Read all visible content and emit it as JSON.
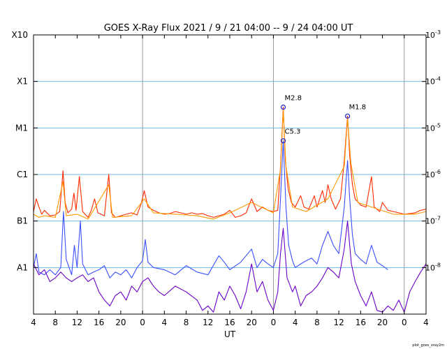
{
  "chart_data": {
    "type": "line",
    "title": "GOES X-Ray Flux   2021 /  9 / 21   04:00 --  9 / 24   04:00   UT",
    "xlabel": "UT",
    "footer": "plot_goes_xray2m",
    "x_range_hours": [
      0,
      72
    ],
    "x_tick_labels": [
      "4",
      "8",
      "12",
      "16",
      "20",
      "0",
      "4",
      "8",
      "12",
      "16",
      "20",
      "0",
      "4",
      "8",
      "12",
      "16",
      "20",
      "0",
      "4"
    ],
    "day_boundaries_hours": [
      20,
      44,
      68
    ],
    "y_scale": "log",
    "ylim": [
      1e-09,
      0.001
    ],
    "y_left_labels": [
      {
        "label": "X10",
        "value": 0.001
      },
      {
        "label": "X1",
        "value": 0.0001
      },
      {
        "label": "M1",
        "value": 1e-05
      },
      {
        "label": "C1",
        "value": 1e-06
      },
      {
        "label": "B1",
        "value": 1e-07
      },
      {
        "label": "A1",
        "value": 1e-08
      }
    ],
    "y_right_labels": [
      {
        "base": "10",
        "exp": "-3",
        "value": 0.001
      },
      {
        "base": "10",
        "exp": "-4",
        "value": 0.0001
      },
      {
        "base": "10",
        "exp": "-5",
        "value": 1e-05
      },
      {
        "base": "10",
        "exp": "-6",
        "value": 1e-06
      },
      {
        "base": "10",
        "exp": "-7",
        "value": 1e-07
      },
      {
        "base": "10",
        "exp": "-8",
        "value": 1e-08
      }
    ],
    "flares": [
      {
        "label": "M2.8",
        "hour": 45.8,
        "value": 2.8e-05
      },
      {
        "label": "C5.3",
        "hour": 45.8,
        "value": 5.3e-06
      },
      {
        "label": "M1.8",
        "hour": 57.6,
        "value": 1.8e-05
      }
    ],
    "series": [
      {
        "color": "#ff2a00",
        "points": [
          [
            0,
            1.6e-07
          ],
          [
            0.5,
            3e-07
          ],
          [
            1,
            2e-07
          ],
          [
            1.5,
            1.4e-07
          ],
          [
            2,
            1.7e-07
          ],
          [
            3,
            1.3e-07
          ],
          [
            4,
            1.35e-07
          ],
          [
            4.8,
            1.6e-07
          ],
          [
            5.4,
            1.2e-06
          ],
          [
            5.8,
            2.5e-07
          ],
          [
            6.3,
            1.5e-07
          ],
          [
            7,
            1.8e-07
          ],
          [
            7.4,
            4e-07
          ],
          [
            7.8,
            1.7e-07
          ],
          [
            8.4,
            9e-07
          ],
          [
            9,
            1.6e-07
          ],
          [
            10,
            1.2e-07
          ],
          [
            10.6,
            1.7e-07
          ],
          [
            11.2,
            3e-07
          ],
          [
            11.8,
            1.5e-07
          ],
          [
            13,
            1.3e-07
          ],
          [
            13.8,
            1e-06
          ],
          [
            14.3,
            1.5e-07
          ],
          [
            15,
            1.2e-07
          ],
          [
            16,
            1.3e-07
          ],
          [
            17,
            1.4e-07
          ],
          [
            18,
            1.5e-07
          ],
          [
            19,
            1.35e-07
          ],
          [
            19.8,
            2.5e-07
          ],
          [
            20.3,
            4.5e-07
          ],
          [
            21,
            2e-07
          ],
          [
            22,
            1.7e-07
          ],
          [
            23,
            1.5e-07
          ],
          [
            24,
            1.4e-07
          ],
          [
            25,
            1.45e-07
          ],
          [
            26,
            1.6e-07
          ],
          [
            27,
            1.5e-07
          ],
          [
            28,
            1.4e-07
          ],
          [
            29,
            1.5e-07
          ],
          [
            30,
            1.4e-07
          ],
          [
            31,
            1.45e-07
          ],
          [
            32,
            1.3e-07
          ],
          [
            33,
            1.2e-07
          ],
          [
            34,
            1.3e-07
          ],
          [
            35,
            1.4e-07
          ],
          [
            36,
            1.7e-07
          ],
          [
            37,
            1.2e-07
          ],
          [
            38,
            1.3e-07
          ],
          [
            39,
            1.5e-07
          ],
          [
            40,
            3e-07
          ],
          [
            41,
            1.6e-07
          ],
          [
            42,
            2e-07
          ],
          [
            43,
            1.7e-07
          ],
          [
            44,
            1.6e-07
          ],
          [
            44.8,
            1.7e-07
          ],
          [
            45.3,
            1.5e-06
          ],
          [
            45.8,
            2.8e-05
          ],
          [
            46.2,
            2e-06
          ],
          [
            46.7,
            5e-07
          ],
          [
            47.3,
            2.5e-07
          ],
          [
            48,
            2e-07
          ],
          [
            49,
            3.5e-07
          ],
          [
            49.6,
            2e-07
          ],
          [
            50.5,
            1.8e-07
          ],
          [
            51.5,
            3.5e-07
          ],
          [
            52,
            2e-07
          ],
          [
            53,
            4.5e-07
          ],
          [
            53.5,
            2.5e-07
          ],
          [
            54,
            6e-07
          ],
          [
            54.6,
            3e-07
          ],
          [
            55.4,
            1.8e-07
          ],
          [
            56.3,
            3e-07
          ],
          [
            57,
            2e-06
          ],
          [
            57.6,
            1.8e-05
          ],
          [
            58,
            2.5e-06
          ],
          [
            58.5,
            6e-07
          ],
          [
            59,
            3e-07
          ],
          [
            60,
            2.2e-07
          ],
          [
            61,
            2e-07
          ],
          [
            62,
            9e-07
          ],
          [
            62.5,
            2e-07
          ],
          [
            63.5,
            1.6e-07
          ],
          [
            64,
            2.5e-07
          ],
          [
            65,
            1.7e-07
          ],
          [
            66,
            1.6e-07
          ],
          [
            67,
            1.5e-07
          ],
          [
            68,
            1.4e-07
          ],
          [
            69,
            1.45e-07
          ],
          [
            70,
            1.5e-07
          ],
          [
            71,
            1.7e-07
          ],
          [
            72,
            1.8e-07
          ]
        ]
      },
      {
        "color": "#ff9900",
        "points": [
          [
            0,
            1.4e-07
          ],
          [
            1,
            1.2e-07
          ],
          [
            2,
            1.3e-07
          ],
          [
            4,
            1.2e-07
          ],
          [
            5.4,
            7e-07
          ],
          [
            6,
            1.3e-07
          ],
          [
            8,
            1.4e-07
          ],
          [
            10,
            1.1e-07
          ],
          [
            13.8,
            6e-07
          ],
          [
            14.5,
            1.2e-07
          ],
          [
            18,
            1.3e-07
          ],
          [
            20.3,
            3e-07
          ],
          [
            22,
            1.5e-07
          ],
          [
            26,
            1.4e-07
          ],
          [
            30,
            1.3e-07
          ],
          [
            33,
            1.1e-07
          ],
          [
            36,
            1.5e-07
          ],
          [
            40,
            2.5e-07
          ],
          [
            44,
            1.5e-07
          ],
          [
            45.3,
            1.3e-06
          ],
          [
            45.8,
            2.5e-05
          ],
          [
            46.3,
            1.5e-06
          ],
          [
            47.5,
            2e-07
          ],
          [
            50,
            1.6e-07
          ],
          [
            54,
            3e-07
          ],
          [
            57,
            1.5e-06
          ],
          [
            57.6,
            1.6e-05
          ],
          [
            58.2,
            1.8e-06
          ],
          [
            59.5,
            2.5e-07
          ],
          [
            62,
            2e-07
          ],
          [
            66,
            1.4e-07
          ],
          [
            70,
            1.4e-07
          ],
          [
            72,
            1.6e-07
          ]
        ]
      },
      {
        "color": "#3b4fff",
        "points": [
          [
            0,
            1e-08
          ],
          [
            0.5,
            2e-08
          ],
          [
            1,
            8e-09
          ],
          [
            2,
            7e-09
          ],
          [
            3,
            9e-09
          ],
          [
            4,
            7e-09
          ],
          [
            5,
            1e-08
          ],
          [
            5.5,
            1.6e-07
          ],
          [
            6,
            1.5e-08
          ],
          [
            7,
            7e-09
          ],
          [
            7.5,
            3e-08
          ],
          [
            8,
            1e-08
          ],
          [
            8.6,
            1e-07
          ],
          [
            9,
            1.2e-08
          ],
          [
            10,
            7e-09
          ],
          [
            11,
            8e-09
          ],
          [
            12,
            9e-09
          ],
          [
            13,
            1.1e-08
          ],
          [
            14,
            6e-09
          ],
          [
            15,
            8e-09
          ],
          [
            16,
            7e-09
          ],
          [
            17,
            9e-09
          ],
          [
            18,
            6e-09
          ],
          [
            19,
            1e-08
          ],
          [
            20,
            1.4e-08
          ],
          [
            20.5,
            4e-08
          ],
          [
            21,
            1.3e-08
          ],
          [
            22,
            1e-08
          ],
          [
            24,
            9e-09
          ],
          [
            26,
            7e-09
          ],
          [
            28,
            1.1e-08
          ],
          [
            30,
            8e-09
          ],
          [
            32,
            7e-09
          ],
          [
            34,
            1.8e-08
          ],
          [
            35,
            1.3e-08
          ],
          [
            36,
            9e-09
          ],
          [
            38,
            1.3e-08
          ],
          [
            40,
            2.5e-08
          ],
          [
            41,
            1e-08
          ],
          [
            42,
            1.5e-08
          ],
          [
            43,
            1.2e-08
          ],
          [
            44,
            1e-08
          ],
          [
            44.8,
            2e-08
          ],
          [
            45.3,
            3e-07
          ],
          [
            45.8,
            5.3e-06
          ],
          [
            46.3,
            2e-07
          ],
          [
            46.8,
            3e-08
          ],
          [
            47.5,
            1.4e-08
          ],
          [
            48,
            1e-08
          ],
          [
            49,
            1.2e-08
          ],
          [
            50,
            1.4e-08
          ],
          [
            51,
            1.6e-08
          ],
          [
            52,
            1.2e-08
          ],
          [
            53,
            3e-08
          ],
          [
            54,
            6e-08
          ],
          [
            55,
            3e-08
          ],
          [
            56,
            2e-08
          ],
          [
            57,
            2e-07
          ],
          [
            57.6,
            2e-06
          ],
          [
            58,
            3e-07
          ],
          [
            58.5,
            5e-08
          ],
          [
            59,
            2e-08
          ],
          [
            60,
            1.5e-08
          ],
          [
            61,
            1.2e-08
          ],
          [
            62,
            3e-08
          ],
          [
            63,
            1.3e-08
          ],
          [
            64,
            1.1e-08
          ],
          [
            65,
            9e-09
          ]
        ]
      },
      {
        "color": "#6a00c8",
        "points": [
          [
            0,
            1.2e-08
          ],
          [
            1,
            7e-09
          ],
          [
            2,
            9e-09
          ],
          [
            3,
            5e-09
          ],
          [
            4,
            6e-09
          ],
          [
            5,
            8e-09
          ],
          [
            6,
            6e-09
          ],
          [
            7,
            5e-09
          ],
          [
            8,
            6e-09
          ],
          [
            9,
            7e-09
          ],
          [
            10,
            5e-09
          ],
          [
            11,
            6e-09
          ],
          [
            12,
            3e-09
          ],
          [
            13,
            2e-09
          ],
          [
            14,
            1.5e-09
          ],
          [
            15,
            2.5e-09
          ],
          [
            16,
            3e-09
          ],
          [
            17,
            2e-09
          ],
          [
            18,
            4e-09
          ],
          [
            19,
            3e-09
          ],
          [
            20,
            5e-09
          ],
          [
            21,
            6e-09
          ],
          [
            22,
            4e-09
          ],
          [
            23,
            3e-09
          ],
          [
            24,
            2.5e-09
          ],
          [
            26,
            4e-09
          ],
          [
            28,
            3e-09
          ],
          [
            30,
            2e-09
          ],
          [
            31,
            1.2e-09
          ],
          [
            32,
            1.5e-09
          ],
          [
            33,
            1.1e-09
          ],
          [
            34,
            3e-09
          ],
          [
            35,
            2e-09
          ],
          [
            36,
            4e-09
          ],
          [
            37,
            2.5e-09
          ],
          [
            38,
            1.3e-09
          ],
          [
            39,
            3e-09
          ],
          [
            40,
            1.2e-08
          ],
          [
            41,
            3e-09
          ],
          [
            42,
            5e-09
          ],
          [
            43,
            2e-09
          ],
          [
            44,
            1.2e-09
          ],
          [
            44.8,
            3e-09
          ],
          [
            45.3,
            2e-08
          ],
          [
            45.8,
            7e-08
          ],
          [
            46.5,
            6e-09
          ],
          [
            47.5,
            3e-09
          ],
          [
            48,
            4e-09
          ],
          [
            49,
            1.5e-09
          ],
          [
            50,
            2.5e-09
          ],
          [
            51,
            3e-09
          ],
          [
            52,
            4e-09
          ],
          [
            53,
            6e-09
          ],
          [
            54,
            1e-08
          ],
          [
            55,
            8e-09
          ],
          [
            56,
            6e-09
          ],
          [
            57,
            2.5e-08
          ],
          [
            57.6,
            1e-07
          ],
          [
            58.3,
            1.2e-08
          ],
          [
            59,
            5e-09
          ],
          [
            60,
            2.5e-09
          ],
          [
            61,
            1.5e-09
          ],
          [
            62,
            3e-09
          ],
          [
            63,
            1.2e-09
          ],
          [
            64,
            1.1e-09
          ],
          [
            65,
            1.5e-09
          ],
          [
            66,
            1.2e-09
          ],
          [
            67,
            2e-09
          ],
          [
            68,
            1.1e-09
          ],
          [
            69,
            3e-09
          ],
          [
            70,
            5e-09
          ],
          [
            71,
            8e-09
          ],
          [
            72,
            1.2e-08
          ]
        ]
      }
    ]
  }
}
